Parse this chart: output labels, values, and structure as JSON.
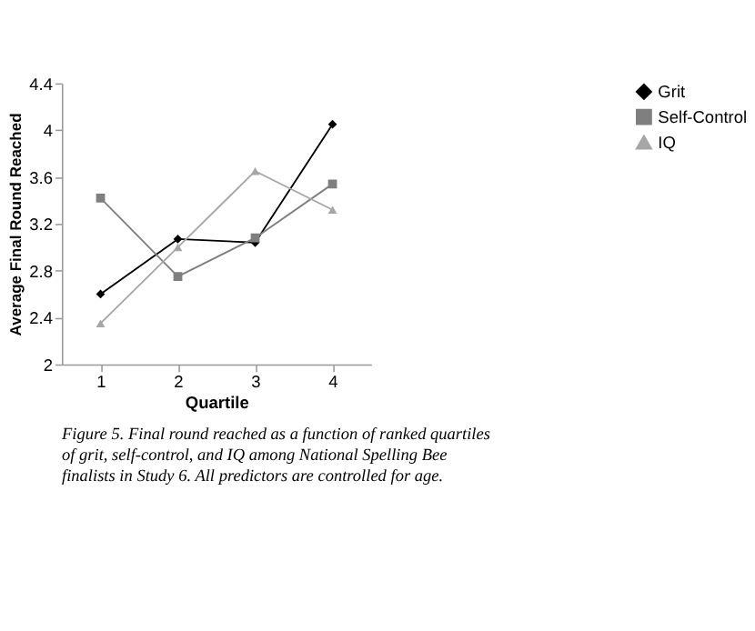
{
  "chart_data": {
    "type": "line",
    "categories": [
      "1",
      "2",
      "3",
      "4"
    ],
    "xlabel": "Quartile",
    "ylabel": "Average Final Round Reached",
    "ylim": [
      2,
      4.4
    ],
    "yticks": [
      2,
      2.4,
      2.8,
      3.2,
      3.6,
      4,
      4.4
    ],
    "series": [
      {
        "name": "Grit",
        "color": "#000000",
        "marker": "diamond",
        "values": [
          2.6,
          3.07,
          3.04,
          4.05
        ]
      },
      {
        "name": "Self-Control",
        "color": "#7f7f7f",
        "marker": "square",
        "values": [
          3.42,
          2.75,
          3.08,
          3.54
        ]
      },
      {
        "name": "IQ",
        "color": "#a6a6a6",
        "marker": "triangle",
        "values": [
          2.35,
          3.0,
          3.65,
          3.32
        ]
      }
    ],
    "legend": "right",
    "grid": false,
    "line_style": "solid",
    "annotations": [
      "Figure 5.   Final round reached as a function of ranked quartiles of grit, self-control, and IQ among National Spelling Bee finalists in Study 6. All predictors are controlled for age."
    ]
  }
}
